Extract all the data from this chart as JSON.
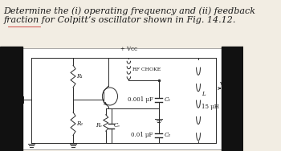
{
  "title_line1": "Determine the (i) operating frequency and (ii) feedback",
  "title_line2": "fraction for Colpitt’s oscillator shown in Fig. 14.12.",
  "bg_color": "#f2ede3",
  "circuit_bg": "#ffffff",
  "text_color": "#1a1a1a",
  "col": "#2a2a2a",
  "label_C1": "0.001 μF",
  "label_C2": "0.01 μF",
  "label_L": "15 μH",
  "label_Vcc": "+ Vᴄᴄ",
  "label_RFC": "RF CHOKE",
  "label_R1": "R₁",
  "label_R2": "R₂",
  "label_Re": "Rₑ",
  "label_Ce": "Cₑ",
  "label_C1sym": "C₁",
  "label_C2sym": "C₂",
  "label_L_sym": "L",
  "label_Vout": "Vₒᵤₜ",
  "font_title": 8.0,
  "font_circ": 5.0,
  "underline_color": "#cc3333",
  "black_color": "#111111"
}
